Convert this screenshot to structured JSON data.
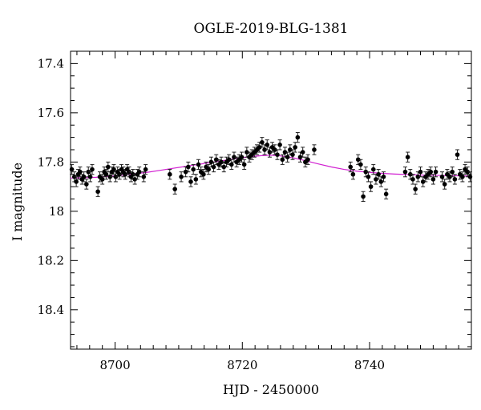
{
  "chart_data": {
    "type": "scatter",
    "title": "OGLE-2019-BLG-1381",
    "xlabel": "HJD - 2450000",
    "ylabel": "I magnitude",
    "xlim": [
      8693,
      8756
    ],
    "ylim": [
      18.56,
      17.35
    ],
    "y_inverted": true,
    "grid": false,
    "xticks": [
      8700,
      8720,
      8740
    ],
    "xtick_labels": [
      "8700",
      "8720",
      "8740"
    ],
    "yticks": [
      17.4,
      17.6,
      17.8,
      18,
      18.2,
      18.4
    ],
    "ytick_labels": [
      "17.4",
      "17.6",
      "17.8",
      "18",
      "18.2",
      "18.4"
    ],
    "colors": {
      "points": "#000000",
      "model": "#d11fd1"
    },
    "series": [
      {
        "type": "scatter",
        "error": 0.02,
        "x": [
          8693.2,
          8693.6,
          8693.9,
          8694.2,
          8694.5,
          8694.8,
          8695.1,
          8695.5,
          8695.8,
          8696.1,
          8696.4,
          8697.3,
          8697.6,
          8698.0,
          8698.3,
          8698.6,
          8698.9,
          8699.2,
          8699.5,
          8699.8,
          8700.1,
          8700.4,
          8700.7,
          8701.0,
          8701.3,
          8701.6,
          8701.9,
          8702.2,
          8702.5,
          8702.8,
          8703.1,
          8703.5,
          8703.8,
          8704.5,
          8704.8,
          8708.6,
          8709.4,
          8710.4,
          8711.1,
          8711.5,
          8711.9,
          8712.3,
          8712.7,
          8713.1,
          8713.5,
          8713.9,
          8714.3,
          8714.7,
          8715.1,
          8715.5,
          8715.9,
          8716.3,
          8716.7,
          8717.1,
          8717.5,
          8717.9,
          8718.3,
          8718.7,
          8719.1,
          8719.5,
          8719.9,
          8720.3,
          8720.7,
          8721.1,
          8721.5,
          8721.9,
          8722.3,
          8722.7,
          8723.1,
          8723.5,
          8723.9,
          8724.3,
          8724.7,
          8725.1,
          8725.5,
          8725.9,
          8726.3,
          8726.7,
          8727.1,
          8727.5,
          8727.9,
          8728.3,
          8728.7,
          8729.1,
          8729.5,
          8729.9,
          8730.3,
          8731.3,
          8737.0,
          8737.4,
          8738.2,
          8738.6,
          8739.0,
          8739.4,
          8739.8,
          8740.2,
          8740.6,
          8741.0,
          8741.4,
          8741.8,
          8742.2,
          8742.6,
          8745.6,
          8746.0,
          8746.4,
          8746.8,
          8747.2,
          8747.6,
          8748.0,
          8748.4,
          8748.8,
          8749.2,
          8749.6,
          8750.0,
          8750.4,
          8751.4,
          8751.8,
          8752.2,
          8752.6,
          8753.0,
          8753.4,
          8753.8,
          8754.2,
          8754.6,
          8755.0,
          8755.4,
          8755.8
        ],
        "y": [
          17.83,
          17.86,
          17.88,
          17.85,
          17.84,
          17.87,
          17.86,
          17.89,
          17.84,
          17.86,
          17.83,
          17.92,
          17.86,
          17.87,
          17.84,
          17.85,
          17.82,
          17.86,
          17.84,
          17.83,
          17.86,
          17.84,
          17.85,
          17.83,
          17.84,
          17.85,
          17.83,
          17.84,
          17.86,
          17.85,
          17.87,
          17.85,
          17.84,
          17.86,
          17.83,
          17.85,
          17.91,
          17.86,
          17.84,
          17.82,
          17.88,
          17.83,
          17.87,
          17.81,
          17.84,
          17.85,
          17.82,
          17.83,
          17.8,
          17.82,
          17.79,
          17.81,
          17.8,
          17.82,
          17.8,
          17.79,
          17.81,
          17.78,
          17.8,
          17.79,
          17.78,
          17.81,
          17.76,
          17.78,
          17.77,
          17.76,
          17.75,
          17.74,
          17.72,
          17.75,
          17.73,
          17.76,
          17.74,
          17.75,
          17.77,
          17.73,
          17.79,
          17.76,
          17.78,
          17.75,
          17.77,
          17.74,
          17.7,
          17.78,
          17.76,
          17.8,
          17.79,
          17.75,
          17.82,
          17.85,
          17.79,
          17.81,
          17.94,
          17.84,
          17.86,
          17.9,
          17.83,
          17.87,
          17.85,
          17.88,
          17.86,
          17.93,
          17.84,
          17.78,
          17.85,
          17.87,
          17.91,
          17.86,
          17.84,
          17.88,
          17.86,
          17.85,
          17.84,
          17.87,
          17.84,
          17.86,
          17.89,
          17.85,
          17.86,
          17.84,
          17.87,
          17.77,
          17.85,
          17.86,
          17.83,
          17.84,
          17.86
        ],
        "color": "#000000"
      },
      {
        "type": "line",
        "x": [
          8693,
          8695,
          8697,
          8699,
          8701,
          8703,
          8705,
          8707,
          8709,
          8711,
          8713,
          8715,
          8717,
          8719,
          8721,
          8723,
          8724.5,
          8726,
          8728,
          8730,
          8732,
          8734,
          8736,
          8738,
          8740,
          8742,
          8744,
          8746,
          8748,
          8750,
          8752,
          8754,
          8756
        ],
        "y": [
          17.865,
          17.864,
          17.862,
          17.858,
          17.854,
          17.848,
          17.842,
          17.834,
          17.826,
          17.818,
          17.81,
          17.802,
          17.794,
          17.786,
          17.779,
          17.774,
          17.772,
          17.775,
          17.783,
          17.795,
          17.808,
          17.82,
          17.83,
          17.837,
          17.842,
          17.846,
          17.849,
          17.851,
          17.853,
          17.854,
          17.855,
          17.856,
          17.857
        ],
        "color": "#d11fd1"
      }
    ]
  }
}
